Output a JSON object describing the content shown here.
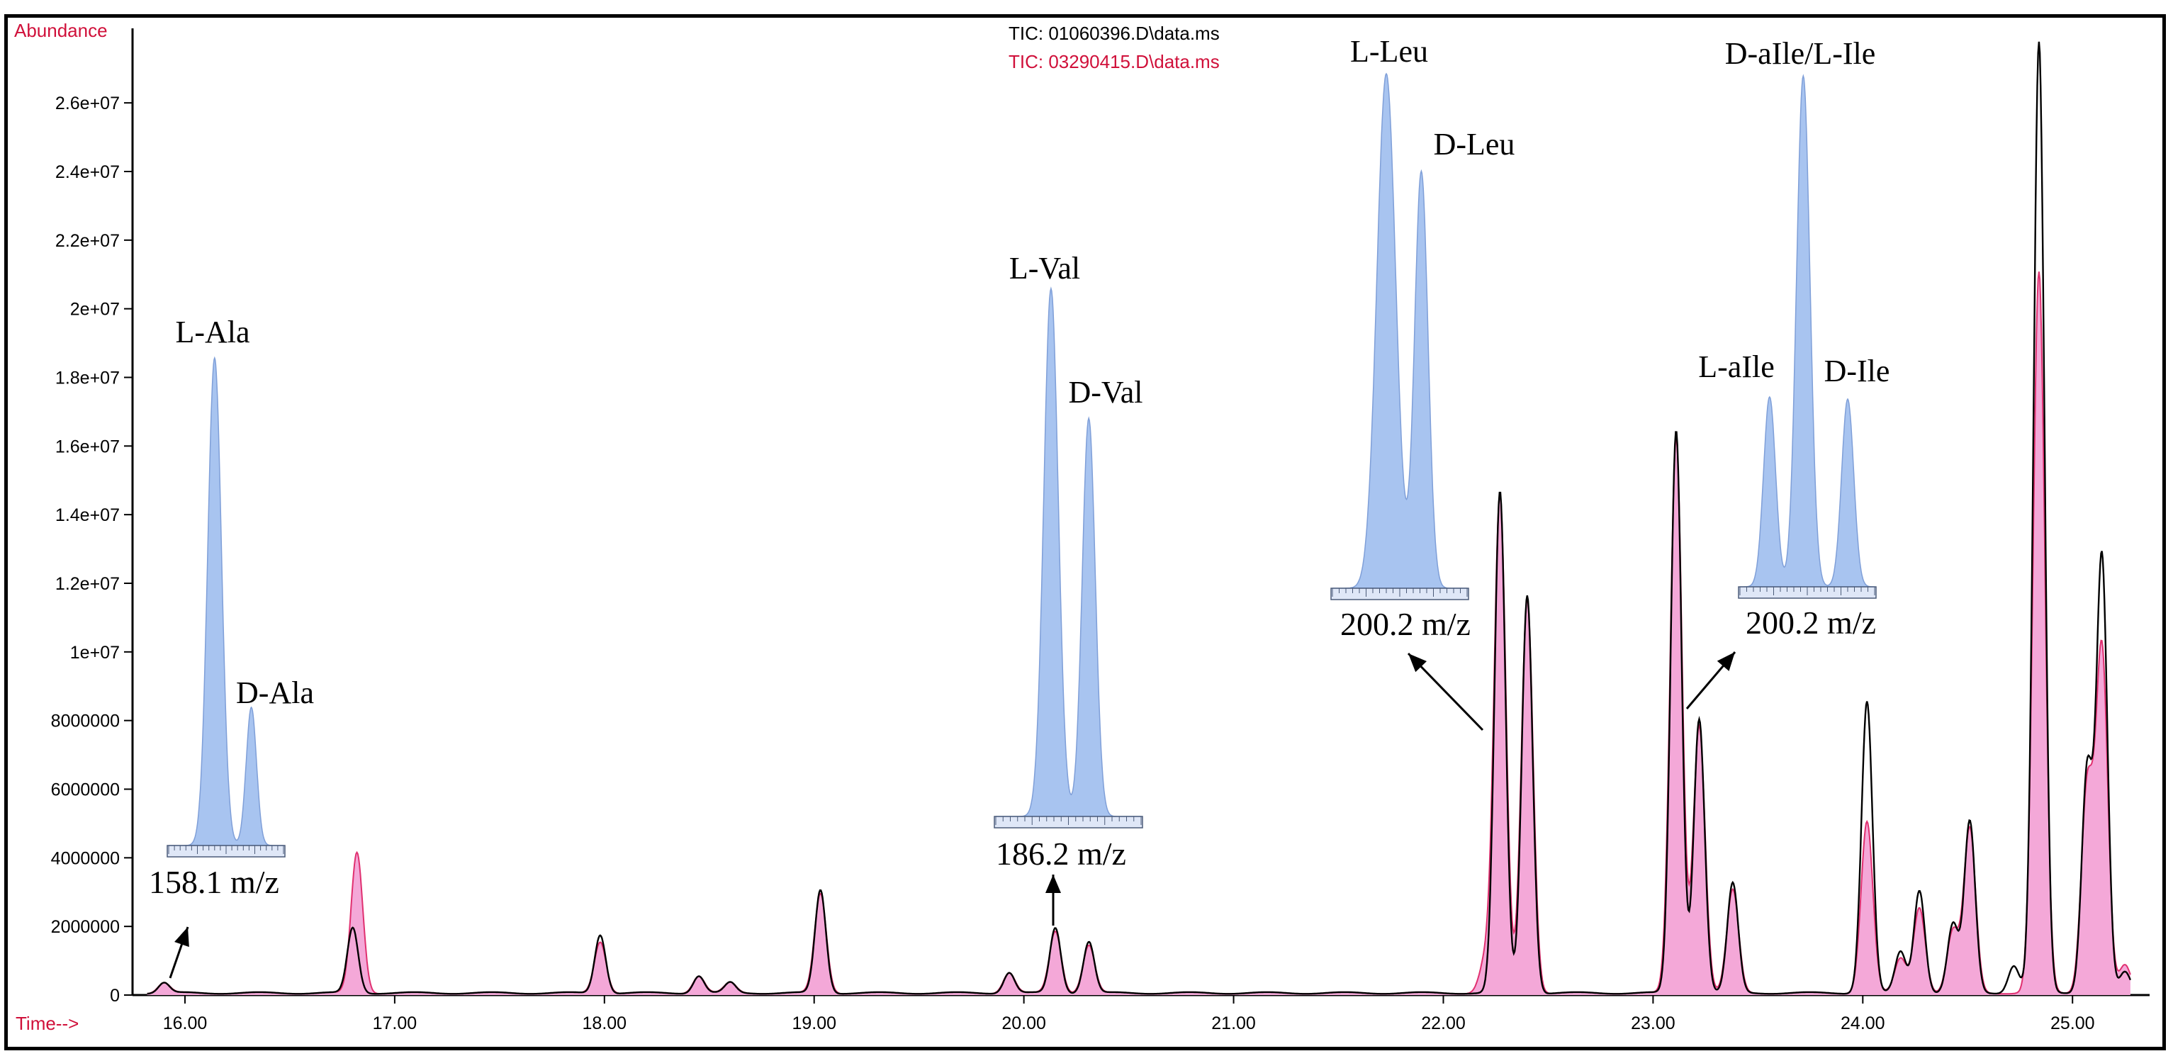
{
  "chart_data": {
    "type": "line",
    "ylabel": "Abundance",
    "xlabel": "Time-->",
    "xlim": [
      15.75,
      25.3
    ],
    "ylim": [
      0,
      27800000
    ],
    "x_ticks": [
      "16.00",
      "17.00",
      "18.00",
      "19.00",
      "20.00",
      "21.00",
      "22.00",
      "23.00",
      "24.00",
      "25.00"
    ],
    "x_tick_values": [
      16,
      17,
      18,
      19,
      20,
      21,
      22,
      23,
      24,
      25
    ],
    "y_ticks": [
      "0",
      "2000000",
      "4000000",
      "6000000",
      "8000000",
      "1e+07",
      "1.2e+07",
      "1.4e+07",
      "1.6e+07",
      "1.8e+07",
      "2e+07",
      "2.2e+07",
      "2.4e+07",
      "2.6e+07"
    ],
    "y_tick_values": [
      0,
      2000000,
      4000000,
      6000000,
      8000000,
      10000000,
      12000000,
      14000000,
      16000000,
      18000000,
      20000000,
      22000000,
      24000000,
      26000000
    ],
    "legend": [
      "TIC: 01060396.D\\data.ms",
      "TIC: 03290415.D\\data.ms"
    ],
    "legend_placement": "top-center",
    "series": [
      {
        "color": "#000000",
        "peaks": [
          [
            15.9,
            300000
          ],
          [
            16.8,
            1900000
          ],
          [
            17.98,
            1700000
          ],
          [
            18.45,
            500000
          ],
          [
            18.6,
            300000
          ],
          [
            19.03,
            3000000
          ],
          [
            19.93,
            600000
          ],
          [
            20.15,
            1900000
          ],
          [
            20.31,
            1500000
          ],
          [
            22.27,
            14600000
          ],
          [
            22.4,
            11600000
          ],
          [
            23.11,
            16400000
          ],
          [
            23.22,
            8000000
          ],
          [
            23.38,
            3200000
          ],
          [
            24.02,
            8500000
          ],
          [
            24.18,
            1200000
          ],
          [
            24.27,
            3000000
          ],
          [
            24.43,
            2000000
          ],
          [
            24.51,
            5000000
          ],
          [
            24.72,
            800000
          ],
          [
            24.84,
            27700000
          ],
          [
            25.07,
            6500000
          ],
          [
            25.14,
            12700000
          ],
          [
            25.25,
            600000
          ]
        ]
      },
      {
        "color": "#e03070",
        "fill": "#f4a8d8",
        "peaks": [
          [
            15.9,
            300000
          ],
          [
            16.82,
            4100000
          ],
          [
            17.98,
            1500000
          ],
          [
            18.45,
            500000
          ],
          [
            18.6,
            300000
          ],
          [
            19.03,
            2900000
          ],
          [
            19.93,
            600000
          ],
          [
            20.15,
            1800000
          ],
          [
            20.31,
            1400000
          ],
          [
            22.2,
            900000
          ],
          [
            22.27,
            14500000
          ],
          [
            22.4,
            11500000
          ],
          [
            23.11,
            16200000
          ],
          [
            23.22,
            7800000
          ],
          [
            23.38,
            3000000
          ],
          [
            24.02,
            5000000
          ],
          [
            24.18,
            1000000
          ],
          [
            24.27,
            2500000
          ],
          [
            24.43,
            1800000
          ],
          [
            24.51,
            4800000
          ],
          [
            24.84,
            21000000
          ],
          [
            25.07,
            6000000
          ],
          [
            25.14,
            10000000
          ],
          [
            25.25,
            800000
          ]
        ]
      }
    ],
    "insets": [
      {
        "mz": "158.1 m/z",
        "labels": [
          "L-Ala",
          "D-Ala"
        ]
      },
      {
        "mz": "186.2 m/z",
        "labels": [
          "L-Val",
          "D-Val"
        ]
      },
      {
        "mz": "200.2 m/z",
        "labels": [
          "L-Leu",
          "D-Leu"
        ]
      },
      {
        "mz": "200.2 m/z",
        "labels": [
          "L-aIle",
          "D-aIle/L-Ile",
          "D-Ile"
        ]
      }
    ]
  }
}
